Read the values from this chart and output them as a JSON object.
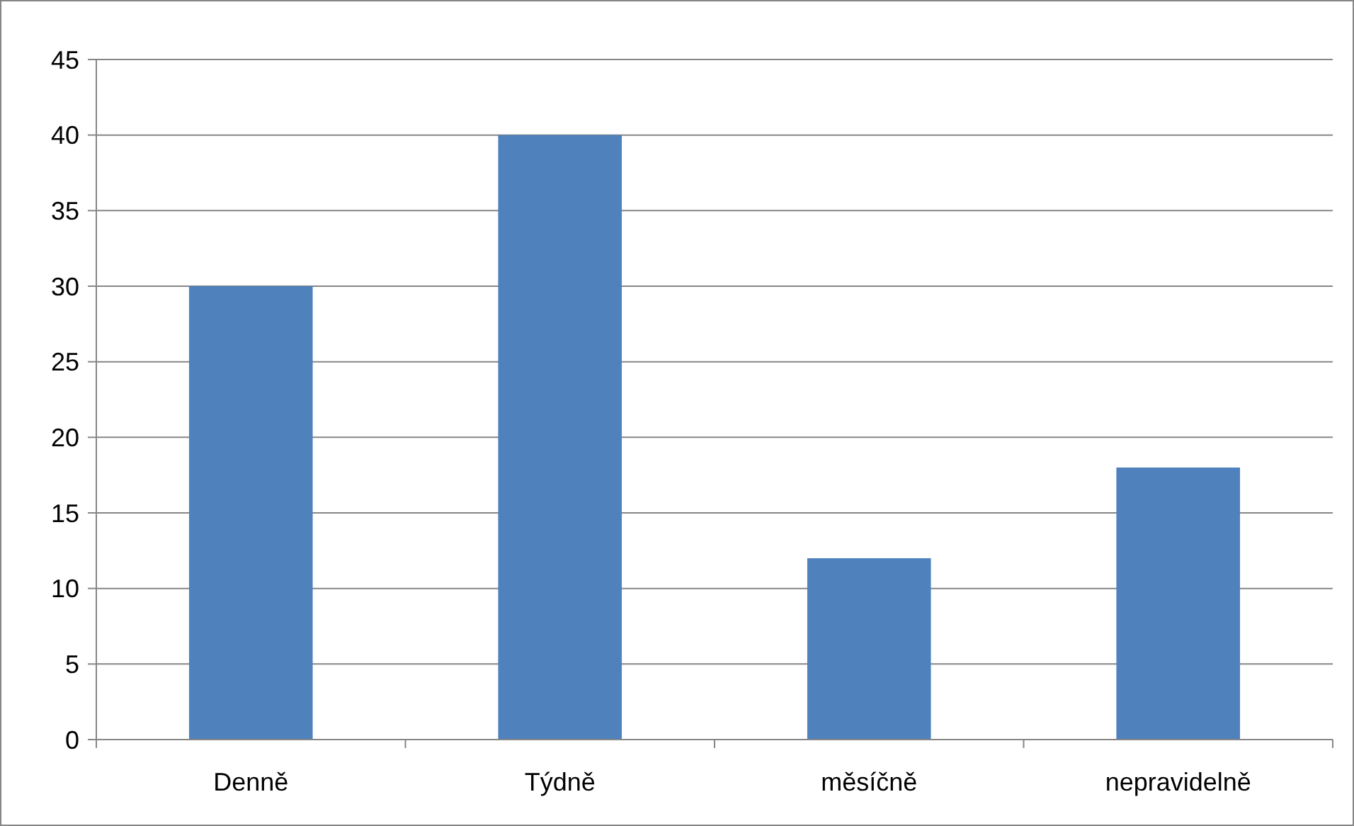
{
  "chart_data": {
    "type": "bar",
    "categories": [
      "Denně",
      "Týdně",
      "měsíčně",
      "nepravidelně"
    ],
    "values": [
      30,
      40,
      12,
      18
    ],
    "color": "#4f81bd",
    "ylim": [
      0,
      45
    ],
    "yticks": [
      0,
      5,
      10,
      15,
      20,
      25,
      30,
      35,
      40,
      45
    ],
    "grid": "y"
  }
}
